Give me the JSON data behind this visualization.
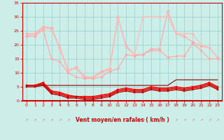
{
  "x": [
    0,
    1,
    2,
    3,
    4,
    5,
    6,
    7,
    8,
    9,
    10,
    11,
    12,
    13,
    14,
    15,
    16,
    17,
    18,
    19,
    20,
    21,
    22,
    23
  ],
  "series": [
    {
      "name": "rafales_top",
      "color": "#ffaaaa",
      "lw": 0.9,
      "marker": "D",
      "ms": 2.0,
      "values": [
        24,
        24,
        26.5,
        26,
        19,
        11,
        12,
        8.5,
        8.5,
        10.5,
        11.5,
        30,
        19.5,
        16.5,
        16.5,
        18.5,
        18.5,
        32,
        24,
        23,
        21,
        19.5,
        19,
        15.5
      ]
    },
    {
      "name": "rafales_mid_upper",
      "color": "#ffbbbb",
      "lw": 0.9,
      "marker": "D",
      "ms": 2.0,
      "values": [
        23.5,
        23.5,
        26,
        25.5,
        18.5,
        10.5,
        11.5,
        8.0,
        8.0,
        10,
        11,
        29.5,
        19,
        16.5,
        30,
        30,
        30,
        30,
        24,
        24,
        24,
        20,
        19,
        15.5
      ]
    },
    {
      "name": "rafales_lower",
      "color": "#ffaaaa",
      "lw": 0.9,
      "marker": "D",
      "ms": 2.0,
      "values": [
        23,
        23,
        25.5,
        15,
        14,
        10,
        8.5,
        8,
        8,
        8.5,
        10.5,
        11.5,
        16.5,
        16,
        16.5,
        18,
        18,
        15.5,
        16,
        16,
        20.5,
        18,
        15,
        15
      ]
    },
    {
      "name": "vent_flat_high",
      "color": "#880000",
      "lw": 0.8,
      "marker": null,
      "ms": 0,
      "values": [
        5.5,
        5.5,
        5.5,
        5.5,
        5.5,
        5.5,
        5.5,
        5.5,
        5.5,
        5.5,
        5.5,
        5.5,
        5.5,
        5.5,
        5.5,
        5.5,
        5.5,
        5.5,
        7.5,
        7.5,
        7.5,
        7.5,
        7.5,
        7.5
      ]
    },
    {
      "name": "vent_max",
      "color": "#ff0000",
      "lw": 1.2,
      "marker": "s",
      "ms": 2.0,
      "values": [
        5.5,
        5.5,
        6.5,
        3.5,
        3,
        2,
        1.5,
        1.5,
        1.5,
        2.0,
        2.5,
        4,
        4.5,
        4,
        4,
        5,
        4.5,
        4.5,
        5,
        4.5,
        5,
        5.5,
        6.5,
        5
      ]
    },
    {
      "name": "vent_mid",
      "color": "#dd0000",
      "lw": 1.1,
      "marker": "s",
      "ms": 2.0,
      "values": [
        5.5,
        5.5,
        6,
        3,
        2.5,
        1.5,
        1.5,
        1,
        1,
        1.5,
        2,
        3.5,
        4,
        3.5,
        3.5,
        4.5,
        4,
        4,
        4.5,
        4,
        4.5,
        5,
        6,
        4.5
      ]
    },
    {
      "name": "vent_min",
      "color": "#bb0000",
      "lw": 1.0,
      "marker": "s",
      "ms": 1.8,
      "values": [
        5.0,
        5.0,
        5.5,
        2.5,
        2,
        1,
        1,
        0.5,
        0.5,
        1,
        1.5,
        3,
        3.5,
        3,
        3,
        4,
        3.5,
        3.5,
        4,
        3.5,
        4,
        4.5,
        5.5,
        4
      ]
    }
  ],
  "xlabel": "Vent moyen/en rafales ( km/h )",
  "xlim": [
    -0.5,
    23.5
  ],
  "ylim": [
    0,
    35
  ],
  "yticks": [
    0,
    5,
    10,
    15,
    20,
    25,
    30,
    35
  ],
  "xticks": [
    0,
    1,
    2,
    3,
    4,
    5,
    6,
    7,
    8,
    9,
    10,
    11,
    12,
    13,
    14,
    15,
    16,
    17,
    18,
    19,
    20,
    21,
    22,
    23
  ],
  "bg_color": "#cceee8",
  "grid_color": "#99cccc",
  "text_color": "#cc0000",
  "arrow_color": "#ff6666",
  "xaxis_line_color": "#cc0000"
}
